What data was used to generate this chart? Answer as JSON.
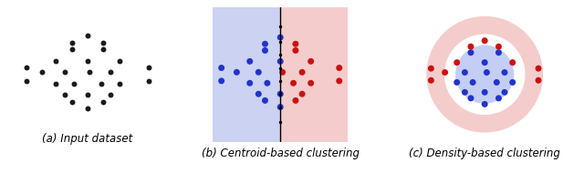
{
  "fig_width": 6.4,
  "fig_height": 1.9,
  "dpi": 100,
  "caption_a": "(a) Input dataset",
  "caption_b": "(b) Centroid-based clustering",
  "caption_c": "(c) Density-based clustering",
  "caption_fontsize": 8.5,
  "bg_blue": "#ccd2f2",
  "bg_red": "#f5cccc",
  "inner_blue_circle": "#c4cef5",
  "dot_black": "#1a1a1a",
  "dot_blue": "#2233cc",
  "dot_red": "#cc1111",
  "points_pattern": [
    [
      0,
      0.85
    ],
    [
      -0.35,
      0.55
    ],
    [
      0.35,
      0.55
    ],
    [
      -0.7,
      0.3
    ],
    [
      0,
      0.3
    ],
    [
      0.7,
      0.3
    ],
    [
      -1.0,
      0.05
    ],
    [
      -0.5,
      0.05
    ],
    [
      0.05,
      0.05
    ],
    [
      0.5,
      0.05
    ],
    [
      -0.7,
      -0.2
    ],
    [
      -0.3,
      -0.2
    ],
    [
      0.3,
      -0.2
    ],
    [
      0.7,
      -0.2
    ],
    [
      -0.5,
      -0.45
    ],
    [
      0,
      -0.45
    ],
    [
      0.5,
      -0.45
    ],
    [
      0,
      -0.75
    ],
    [
      -0.35,
      -0.6
    ],
    [
      0.35,
      -0.6
    ],
    [
      -1.35,
      0.15
    ],
    [
      -1.35,
      -0.15
    ],
    [
      1.35,
      0.15
    ],
    [
      1.35,
      -0.15
    ],
    [
      -0.35,
      0.7
    ],
    [
      0.35,
      0.7
    ]
  ],
  "outer_red_r": 1.45,
  "white_gap_r": 1.0,
  "inner_blue_r": 0.72,
  "marker_size": 18,
  "line_tick_ys": [
    -1.1,
    -0.75,
    -0.45,
    -0.15,
    0.15,
    0.45,
    0.75,
    1.1
  ]
}
